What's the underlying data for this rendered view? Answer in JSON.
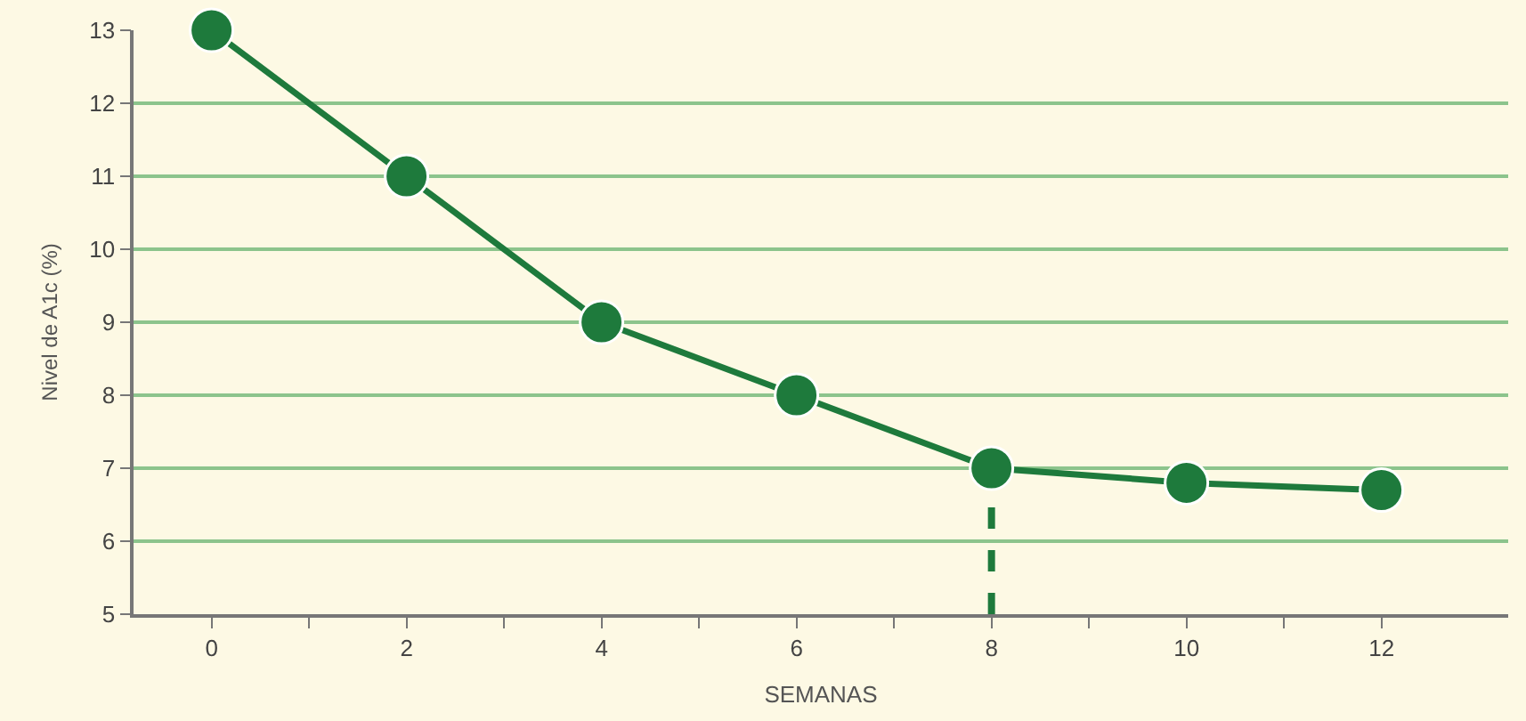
{
  "chart_data": {
    "type": "line",
    "xlabel": "SEMANAS",
    "ylabel": "Nivel de A1c (%)",
    "x": [
      0,
      2,
      4,
      6,
      8,
      10,
      12
    ],
    "series": [
      {
        "color": "#1e7a3c",
        "values": [
          13,
          11,
          9,
          8,
          7,
          6.8,
          6.7
        ]
      }
    ],
    "xlim": [
      -0.8,
      13.3
    ],
    "xticks": [
      0,
      {
        "value": 1,
        "label": null
      },
      2,
      {
        "value": 3,
        "label": null
      },
      4,
      {
        "value": 5,
        "label": null
      },
      6,
      {
        "value": 7,
        "label": null
      },
      8,
      {
        "value": 9,
        "label": null
      },
      10,
      {
        "value": 11,
        "label": null
      },
      12
    ],
    "ylim": [
      5,
      13
    ],
    "yticks": [
      5,
      6,
      7,
      8,
      9,
      10,
      11,
      12,
      13
    ],
    "grid": "y",
    "marker": "circle",
    "line_style": "solid",
    "ref_lines": [
      {
        "axis": "x",
        "value": 8,
        "label": null,
        "color": "#1e7a3c",
        "line_style": "dashed"
      }
    ]
  }
}
